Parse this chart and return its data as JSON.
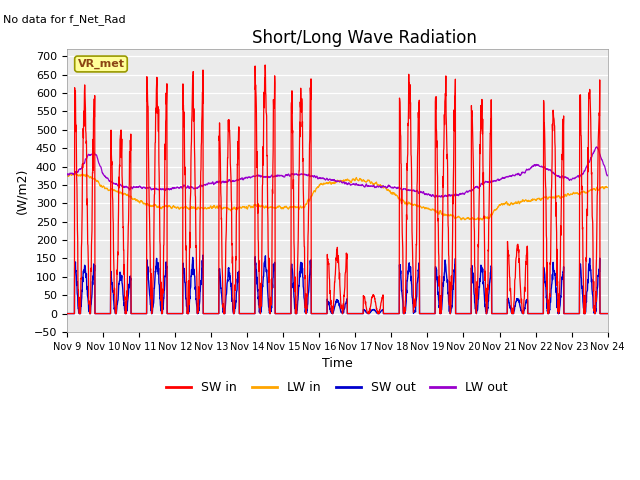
{
  "title": "Short/Long Wave Radiation",
  "xlabel": "Time",
  "ylabel": "(W/m2)",
  "annotation": "No data for f_Net_Rad",
  "station_label": "VR_met",
  "ylim": [
    -50,
    720
  ],
  "x_tick_labels": [
    "Nov 9",
    "Nov 10",
    "Nov 11",
    "Nov 12",
    "Nov 13",
    "Nov 14",
    "Nov 15",
    "Nov 16",
    "Nov 17",
    "Nov 18",
    "Nov 19",
    "Nov 20",
    "Nov 21",
    "Nov 22",
    "Nov 23",
    "Nov 24"
  ],
  "colors": {
    "SW_in": "#FF0000",
    "LW_in": "#FFA500",
    "SW_out": "#0000CD",
    "LW_out": "#9900CC"
  },
  "legend_labels": [
    "SW in",
    "LW in",
    "SW out",
    "LW out"
  ],
  "plot_bg_color": "#EBEBEB",
  "title_fontsize": 12,
  "label_fontsize": 9,
  "tick_fontsize": 8,
  "SW_in_peaks": [
    600,
    470,
    610,
    600,
    510,
    655,
    605,
    165,
    50,
    595,
    585,
    550,
    180,
    540,
    585
  ],
  "SW_out_ratio": 0.22,
  "LW_in_profile_x": [
    0,
    0.2,
    0.5,
    0.8,
    1.0,
    1.3,
    1.6,
    2.0,
    2.3,
    2.6,
    3.0,
    3.4,
    3.7,
    4.0,
    4.4,
    4.7,
    5.0,
    5.3,
    5.6,
    6.0,
    6.3,
    6.6,
    7.0,
    7.3,
    7.6,
    8.0,
    8.3,
    8.7,
    9.0,
    9.4,
    9.7,
    10.0,
    10.3,
    10.6,
    11.0,
    11.3,
    11.7,
    12.0,
    12.3,
    12.6,
    13.0,
    13.3,
    13.7,
    14.0,
    14.3,
    14.7,
    15.0
  ],
  "LW_in_profile_y": [
    375,
    380,
    375,
    365,
    345,
    335,
    325,
    305,
    295,
    290,
    290,
    285,
    287,
    290,
    288,
    285,
    290,
    295,
    290,
    288,
    290,
    292,
    350,
    355,
    360,
    365,
    360,
    350,
    330,
    300,
    295,
    285,
    275,
    268,
    260,
    258,
    260,
    295,
    300,
    305,
    310,
    315,
    320,
    325,
    330,
    340,
    345
  ],
  "LW_out_profile_x": [
    0,
    0.2,
    0.4,
    0.6,
    0.8,
    1.0,
    1.2,
    1.4,
    1.6,
    1.8,
    2.0,
    2.3,
    2.6,
    3.0,
    3.3,
    3.6,
    4.0,
    4.3,
    4.6,
    5.0,
    5.3,
    5.6,
    6.0,
    6.3,
    6.6,
    7.0,
    7.3,
    7.6,
    8.0,
    8.3,
    8.6,
    9.0,
    9.3,
    9.6,
    10.0,
    10.3,
    10.7,
    11.0,
    11.3,
    11.6,
    12.0,
    12.3,
    12.6,
    13.0,
    13.3,
    13.6,
    14.0,
    14.3,
    14.7,
    15.0
  ],
  "LW_out_profile_y": [
    378,
    382,
    395,
    430,
    438,
    380,
    360,
    350,
    345,
    342,
    345,
    340,
    338,
    342,
    345,
    342,
    355,
    358,
    360,
    370,
    375,
    372,
    375,
    378,
    380,
    370,
    365,
    358,
    350,
    348,
    345,
    345,
    340,
    335,
    325,
    320,
    322,
    325,
    340,
    355,
    365,
    375,
    380,
    405,
    395,
    375,
    365,
    380,
    455,
    375
  ]
}
